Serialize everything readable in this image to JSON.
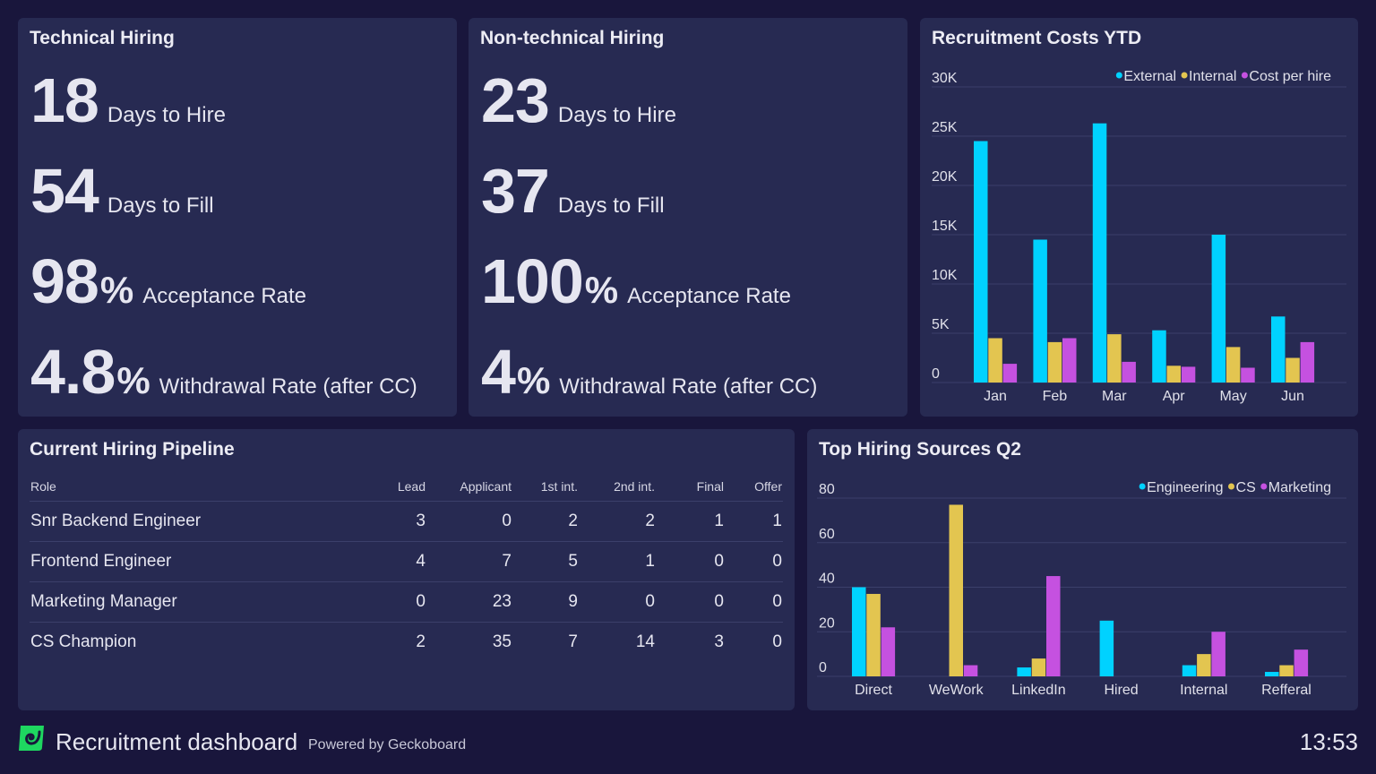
{
  "technical": {
    "title": "Technical Hiring",
    "kpis": [
      {
        "value": "18",
        "unit": "",
        "label": "Days to Hire"
      },
      {
        "value": "54",
        "unit": "",
        "label": "Days to Fill"
      },
      {
        "value": "98",
        "unit": "%",
        "label": "Acceptance Rate"
      },
      {
        "value": "4.8",
        "unit": "%",
        "label": "Withdrawal Rate (after CC)"
      }
    ]
  },
  "nontechnical": {
    "title": "Non-technical Hiring",
    "kpis": [
      {
        "value": "23",
        "unit": "",
        "label": "Days to Hire"
      },
      {
        "value": "37",
        "unit": "",
        "label": "Days to Fill"
      },
      {
        "value": "100",
        "unit": "%",
        "label": "Acceptance Rate"
      },
      {
        "value": "4",
        "unit": "%",
        "label": "Withdrawal Rate (after CC)"
      }
    ]
  },
  "pipeline": {
    "title": "Current Hiring Pipeline",
    "columns": [
      "Role",
      "Lead",
      "Applicant",
      "1st int.",
      "2nd int.",
      "Final",
      "Offer"
    ],
    "rows": [
      [
        "Snr Backend Engineer",
        "3",
        "0",
        "2",
        "2",
        "1",
        "1"
      ],
      [
        "Frontend Engineer",
        "4",
        "7",
        "5",
        "1",
        "0",
        "0"
      ],
      [
        "Marketing Manager",
        "0",
        "23",
        "9",
        "0",
        "0",
        "0"
      ],
      [
        "CS Champion",
        "2",
        "35",
        "7",
        "14",
        "3",
        "0"
      ]
    ]
  },
  "colors": {
    "cyan": "#00d2ff",
    "yellow": "#e3c550",
    "purple": "#c551e0",
    "brand": "#1ed760"
  },
  "chart_data": [
    {
      "type": "bar",
      "title": "Recruitment Costs YTD",
      "categories": [
        "Jan",
        "Feb",
        "Mar",
        "Apr",
        "May",
        "Jun"
      ],
      "yticks": [
        "0",
        "5K",
        "10K",
        "15K",
        "20K",
        "25K",
        "30K"
      ],
      "ylim": [
        0,
        30000
      ],
      "grid": true,
      "legend": "top-right",
      "series": [
        {
          "name": "External",
          "color": "#00d2ff",
          "values": [
            24500,
            14500,
            26300,
            5300,
            15000,
            6700
          ]
        },
        {
          "name": "Internal",
          "color": "#e3c550",
          "values": [
            4500,
            4100,
            4900,
            1700,
            3600,
            2500
          ]
        },
        {
          "name": "Cost per hire",
          "color": "#c551e0",
          "values": [
            1900,
            4500,
            2100,
            1600,
            1500,
            4100
          ]
        }
      ]
    },
    {
      "type": "bar",
      "title": "Top Hiring Sources Q2",
      "categories": [
        "Direct",
        "WeWork",
        "LinkedIn",
        "Hired",
        "Internal",
        "Refferal"
      ],
      "yticks": [
        "0",
        "20",
        "40",
        "60",
        "80"
      ],
      "ylim": [
        0,
        80
      ],
      "grid": true,
      "legend": "top-right",
      "series": [
        {
          "name": "Engineering",
          "color": "#00d2ff",
          "values": [
            40,
            0,
            4,
            25,
            5,
            2
          ]
        },
        {
          "name": "CS",
          "color": "#e3c550",
          "values": [
            37,
            77,
            8,
            0,
            10,
            5
          ]
        },
        {
          "name": "Marketing",
          "color": "#c551e0",
          "values": [
            22,
            5,
            45,
            0,
            20,
            12
          ]
        }
      ]
    }
  ],
  "footer": {
    "title": "Recruitment dashboard",
    "powered": "Powered by Geckoboard",
    "time": "13:53"
  }
}
